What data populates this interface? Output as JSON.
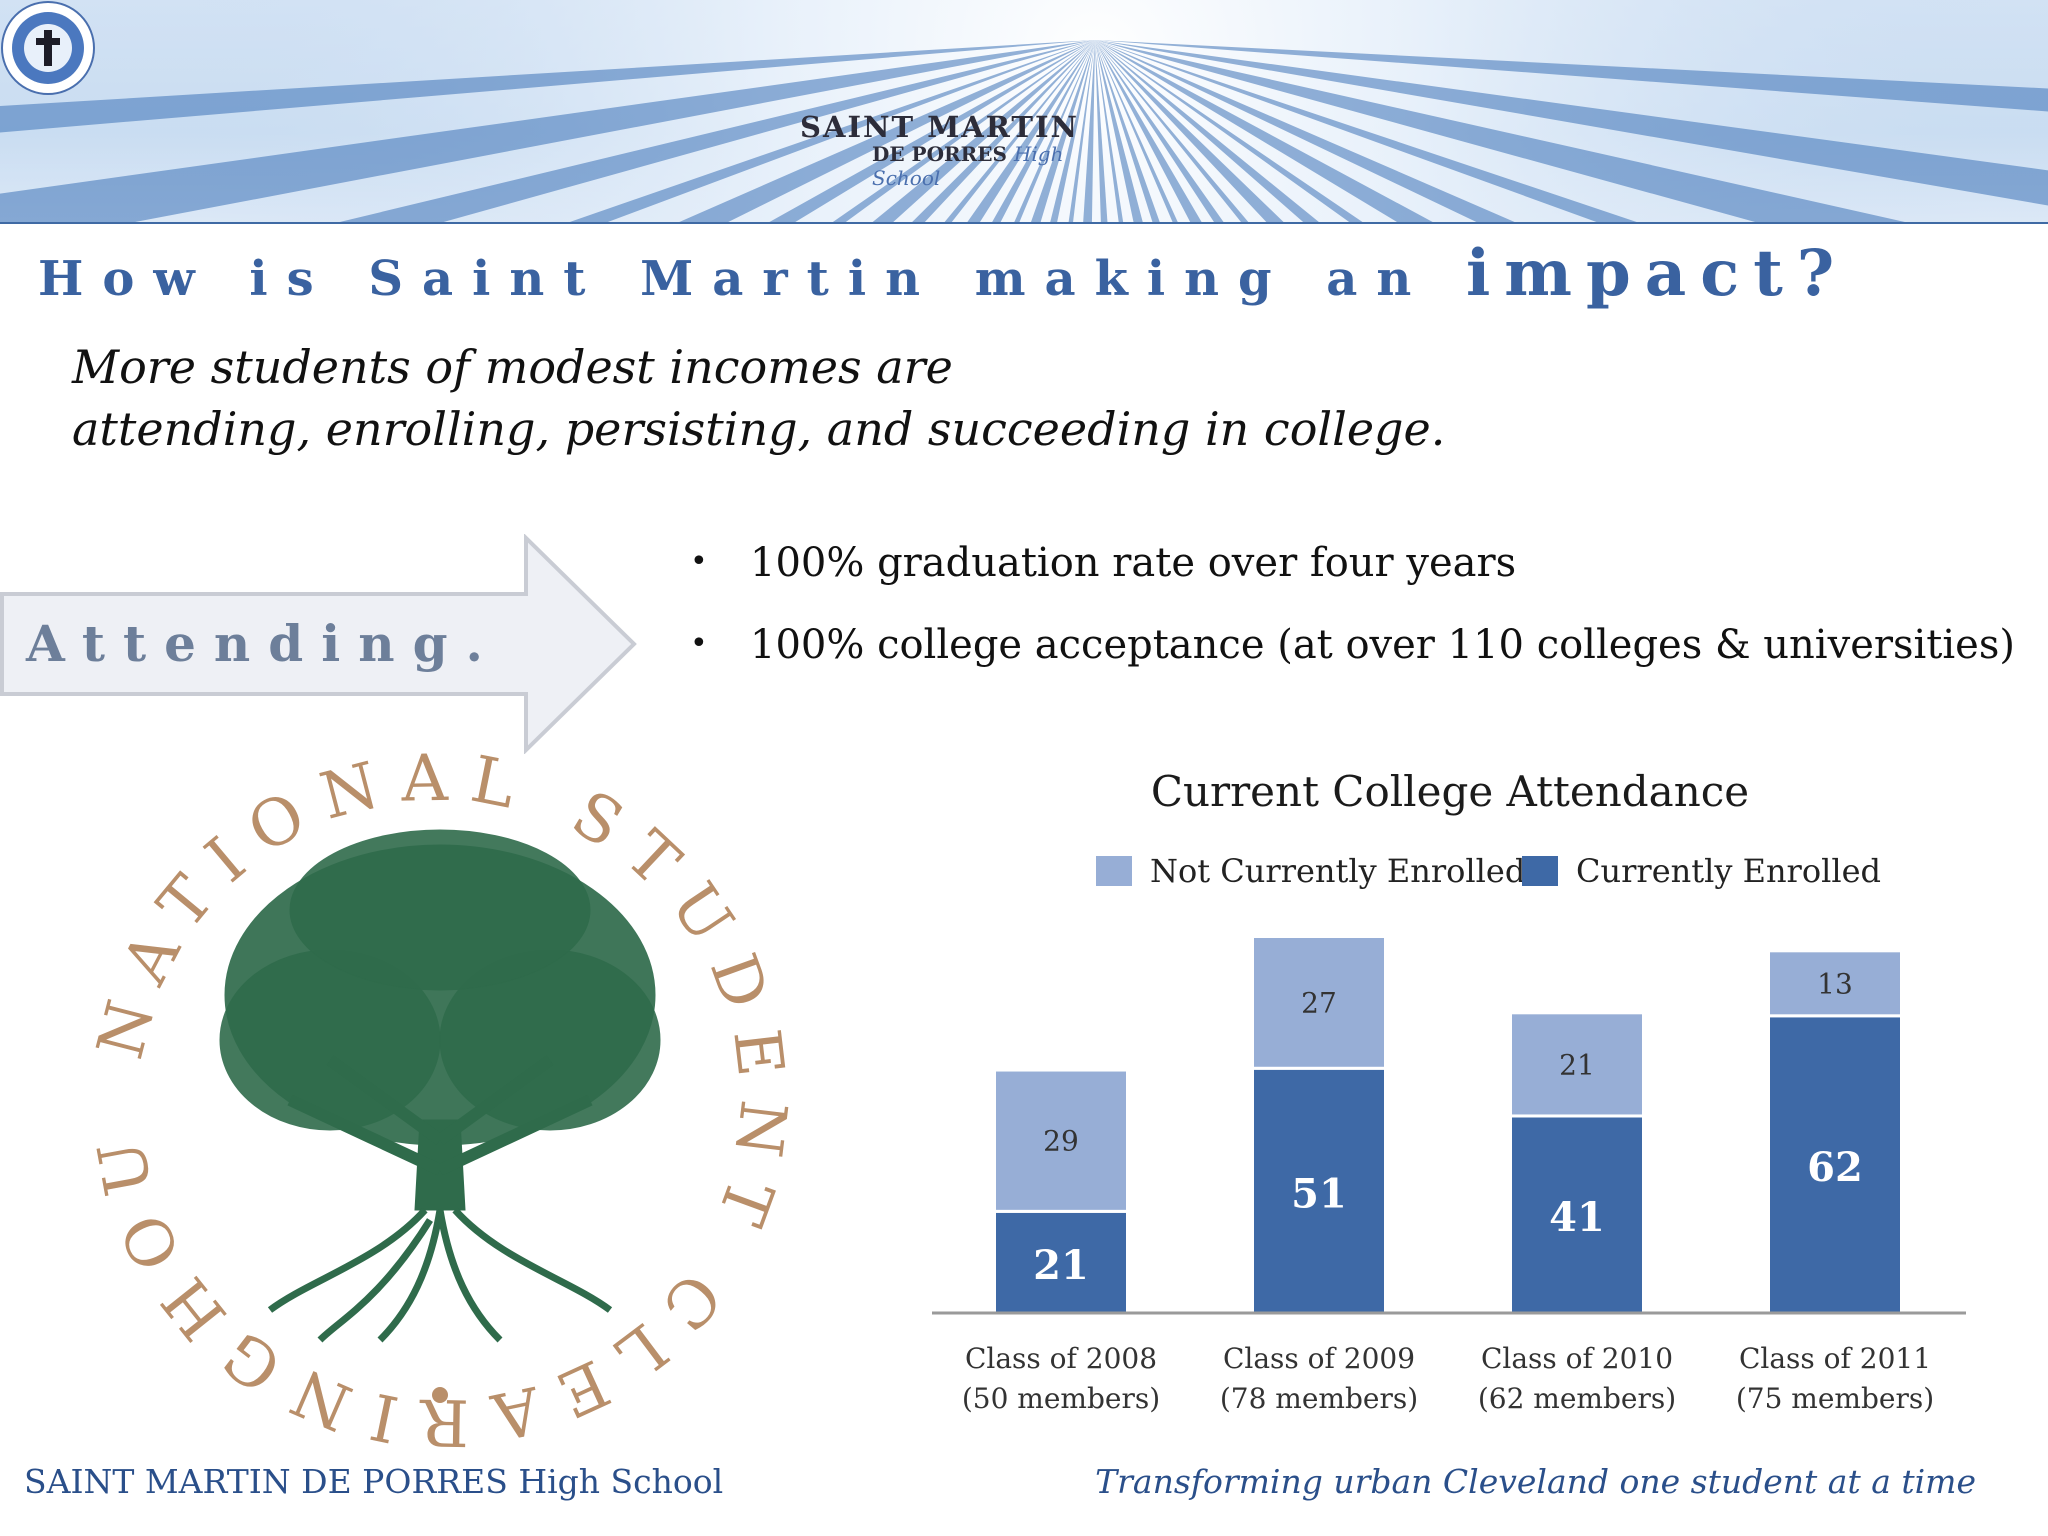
{
  "header": {
    "logo_line1": "SAINT MARTIN",
    "logo_line2": "DE PORRES",
    "logo_line2_italic": "High School",
    "seal_icon": "school-seal-cross-icon"
  },
  "headline": {
    "text": "How is Saint Martin making an",
    "emphasis": "impact?"
  },
  "subtitle": {
    "line1": "More students of modest incomes are",
    "line2": "attending, enrolling, persisting, and succeeding in college."
  },
  "arrow_label": "Attending.",
  "bullets": [
    "100% graduation rate over four years",
    "100% college acceptance (at over 110 colleges & universities)"
  ],
  "clearinghouse_logo": {
    "text": "NATIONAL STUDENT CLEARINGHOUSE",
    "icon": "tree-icon"
  },
  "chart_data": {
    "type": "bar",
    "stacked": true,
    "title": "Current College Attendance",
    "categories": [
      "Class of 2008",
      "Class of 2009",
      "Class of 2010",
      "Class of 2011"
    ],
    "category_sublabels": [
      "(50 members)",
      "(78 members)",
      "(62 members)",
      "(75 members)"
    ],
    "series": [
      {
        "name": "Currently Enrolled",
        "values": [
          21,
          51,
          41,
          62
        ],
        "color": "#3e69a6"
      },
      {
        "name": "Not Currently Enrolled",
        "values": [
          29,
          27,
          21,
          13
        ],
        "color": "#97aed6"
      }
    ],
    "ylim": [
      0,
      80
    ],
    "legend": "top",
    "grid": false
  },
  "footer": {
    "left": "SAINT MARTIN DE PORRES High School",
    "right": "Transforming urban Cleveland one student at a time"
  }
}
